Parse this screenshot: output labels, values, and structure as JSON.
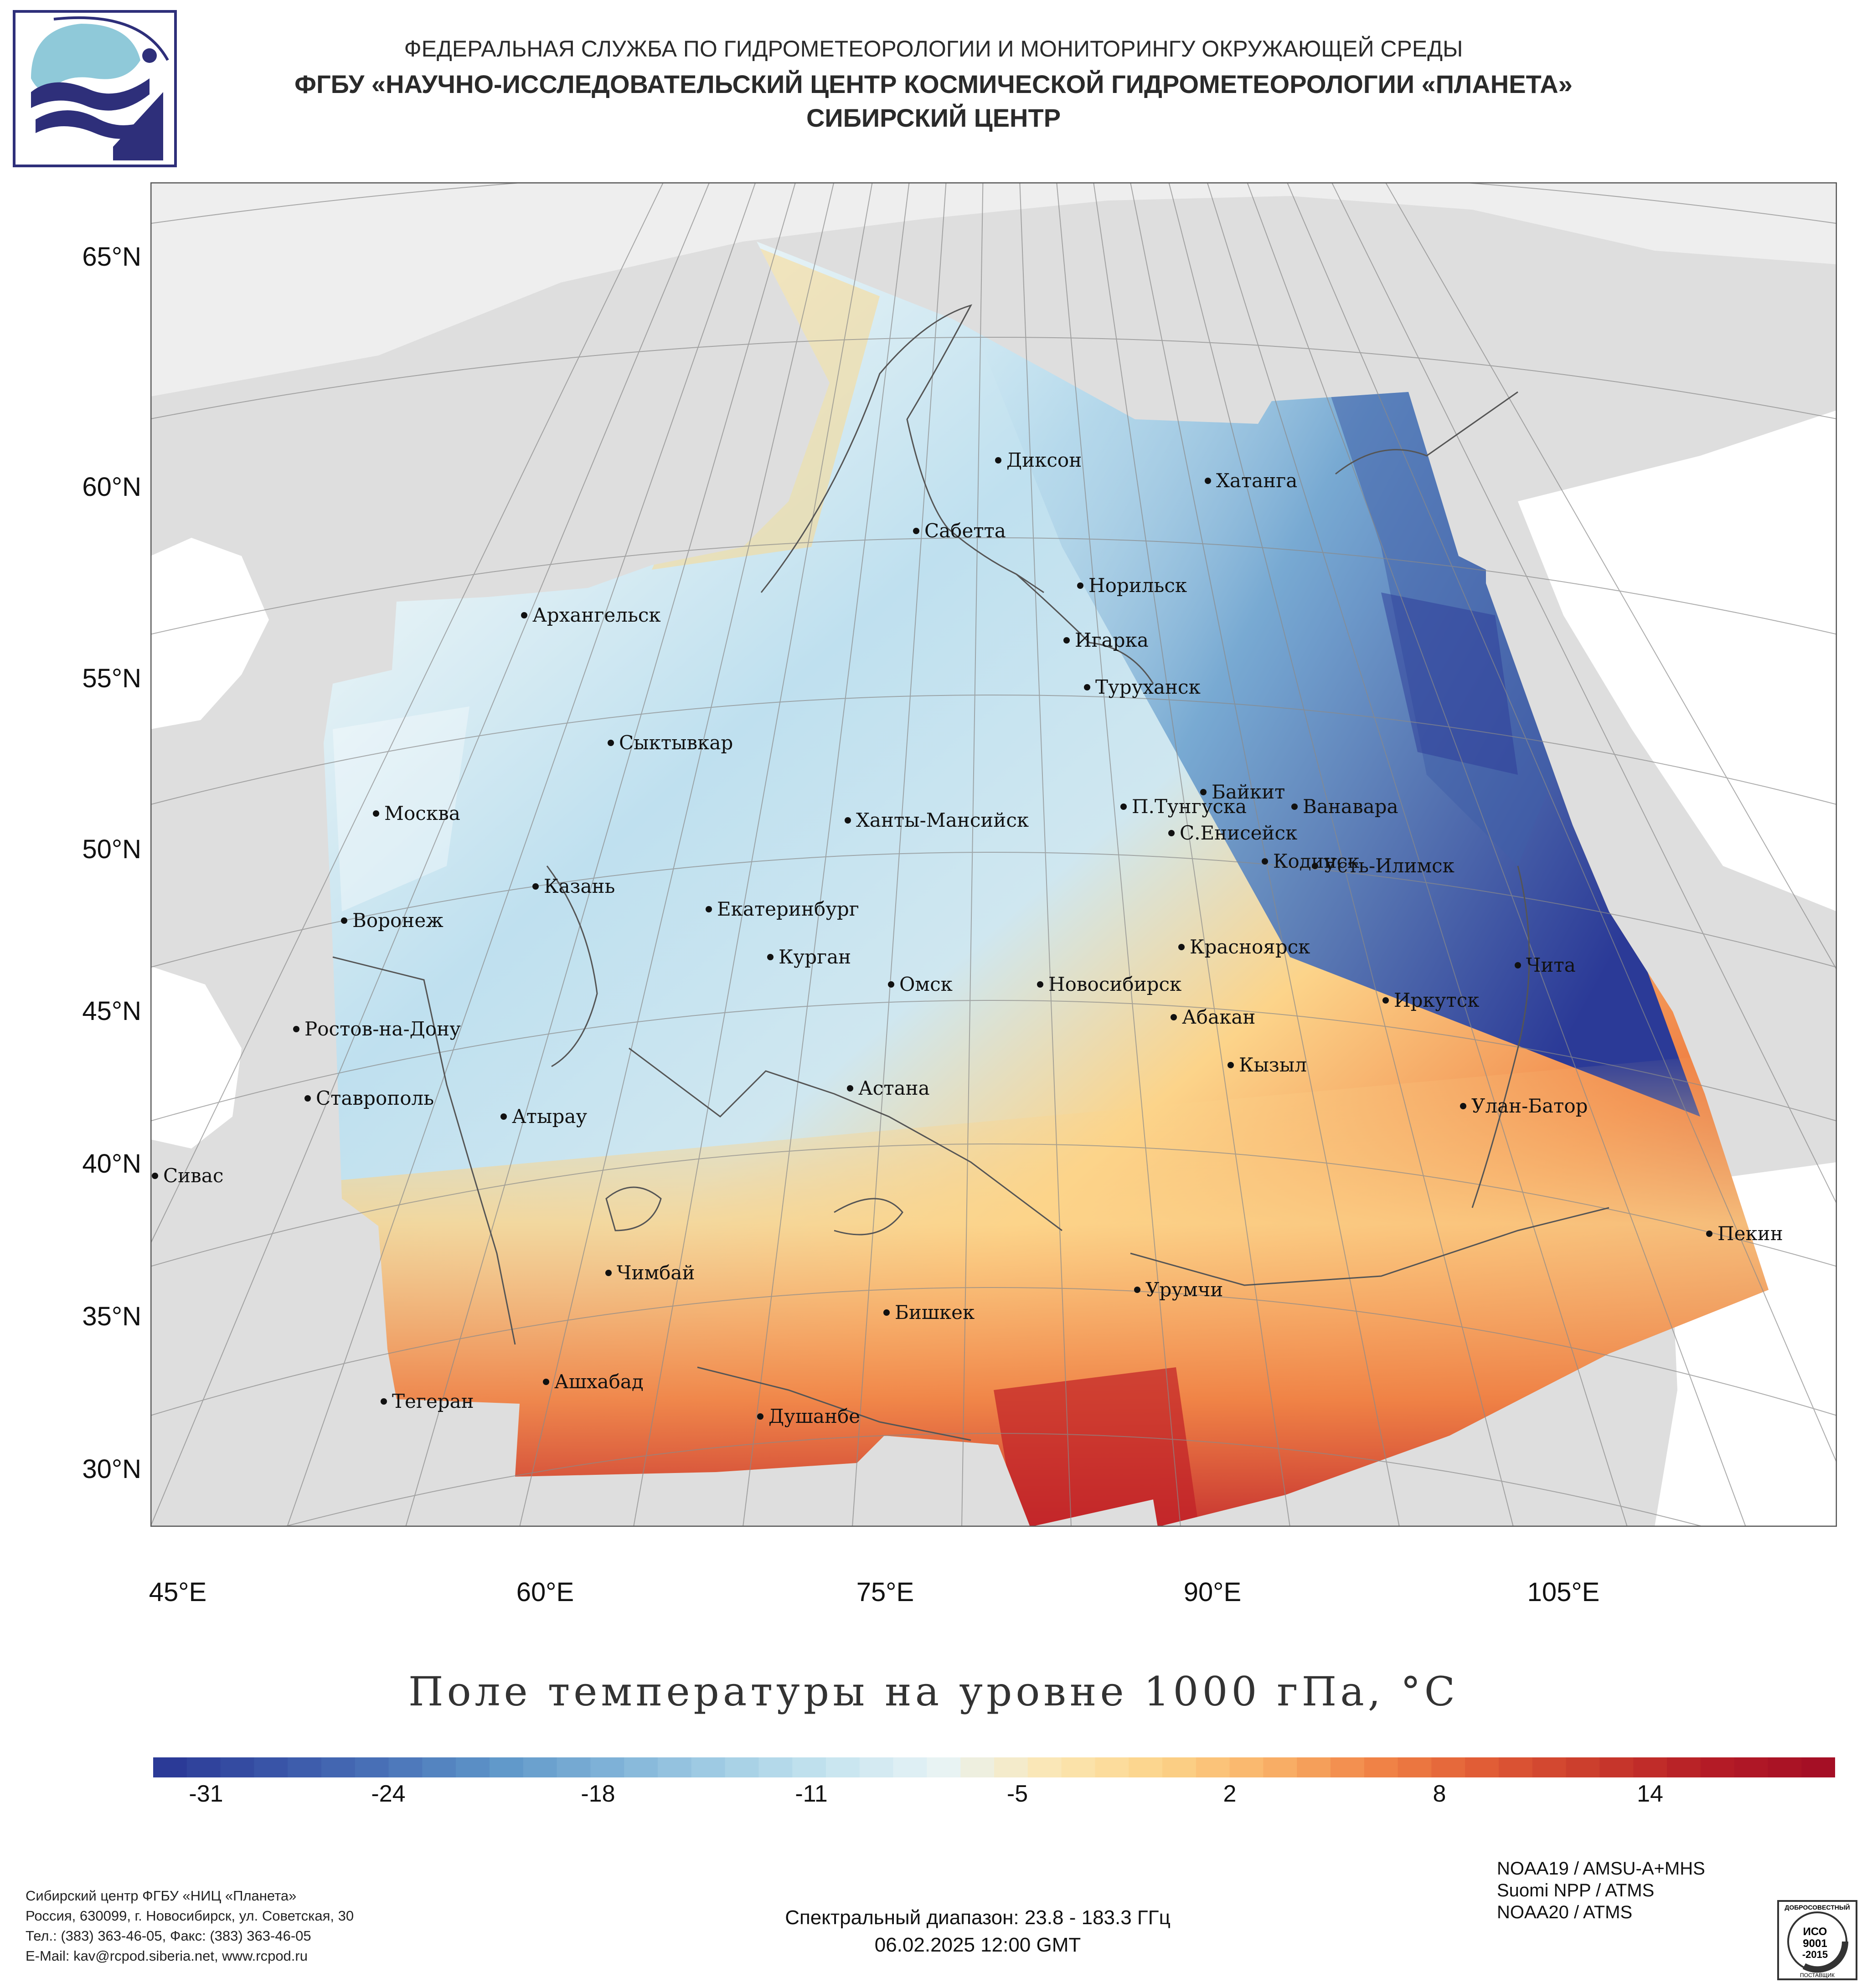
{
  "header": {
    "line1": "ФЕДЕРАЛЬНАЯ СЛУЖБА ПО ГИДРОМЕТЕОРОЛОГИИ И МОНИТОРИНГУ ОКРУЖАЮЩЕЙ СРЕДЫ",
    "line2": "ФГБУ «НАУЧНО-ИССЛЕДОВАТЕЛЬСКИЙ ЦЕНТР КОСМИЧЕСКОЙ ГИДРОМЕТЕОРОЛОГИИ «ПЛАНЕТА»",
    "line3": "СИБИРСКИЙ ЦЕНТР"
  },
  "map": {
    "lat_labels": [
      "65°N",
      "60°N",
      "55°N",
      "50°N",
      "45°N",
      "40°N",
      "35°N",
      "30°N"
    ],
    "lon_labels": [
      "45°E",
      "60°E",
      "75°E",
      "90°E",
      "105°E"
    ],
    "cities": [
      "Диксон",
      "Хатанга",
      "Сабетта",
      "Норильск",
      "Архангельск",
      "Игарка",
      "Туруханск",
      "Сыктывкар",
      "Байкит",
      "Москва",
      "П.Тунгуска",
      "Ванавара",
      "Ханты-Мансийск",
      "С.Енисейск",
      "Кодинск",
      "Усть-Илимск",
      "Казань",
      "Екатеринбург",
      "Воронеж",
      "Красноярск",
      "Курган",
      "Чита",
      "Омск",
      "Новосибирск",
      "Иркутск",
      "Абакан",
      "Ростов-на-Дону",
      "Кызыл",
      "Ставрополь",
      "Астана",
      "Улан-Батор",
      "Атырау",
      "Сивас",
      "Пекин",
      "Чимбай",
      "Урумчи",
      "Бишкек",
      "Ашхабад",
      "Тегеран",
      "Душанбе"
    ]
  },
  "colors": {
    "land": "#dedede",
    "ocean": "#ffffff",
    "cold_extreme": "#2b3a97",
    "cold": "#5f97c9",
    "cool": "#bfe0ef",
    "neutral": "#e9f3f6",
    "warm": "#fcd48a",
    "hot": "#f08346",
    "hot_extreme": "#b51c26"
  },
  "chart_title": "Поле температуры на уровне 1000 гПа, °C",
  "colorbar": {
    "ticks": [
      "-31",
      "-24",
      "-18",
      "-11",
      "-5",
      "2",
      "8",
      "14"
    ],
    "min": -31,
    "max": 19
  },
  "footer": {
    "org": "Сибирский центр ФГБУ «НИЦ «Планета»",
    "address": "Россия, 630099, г. Новосибирск, ул. Советская, 30",
    "phone": "Тел.: (383) 363-46-05, Факс: (383) 363-46-05",
    "email": "E-Mail: kav@rcpod.siberia.net, www.rcpod.ru",
    "spectral": "Спектральный диапазон: 23.8 - 183.3 ГГц",
    "datetime": "06.02.2025 12:00 GMT",
    "sat1": "NOAA19 / AMSU-A+MHS",
    "sat2": "Suomi NPP / ATMS",
    "sat3": "NOAA20 / ATMS",
    "iso_top": "ДОБРОСОВЕСТНЫЙ",
    "iso_name": "ИСО",
    "iso_num": "9001",
    "iso_year": "-2015",
    "iso_bottom": "ПОСТАВЩИК"
  }
}
